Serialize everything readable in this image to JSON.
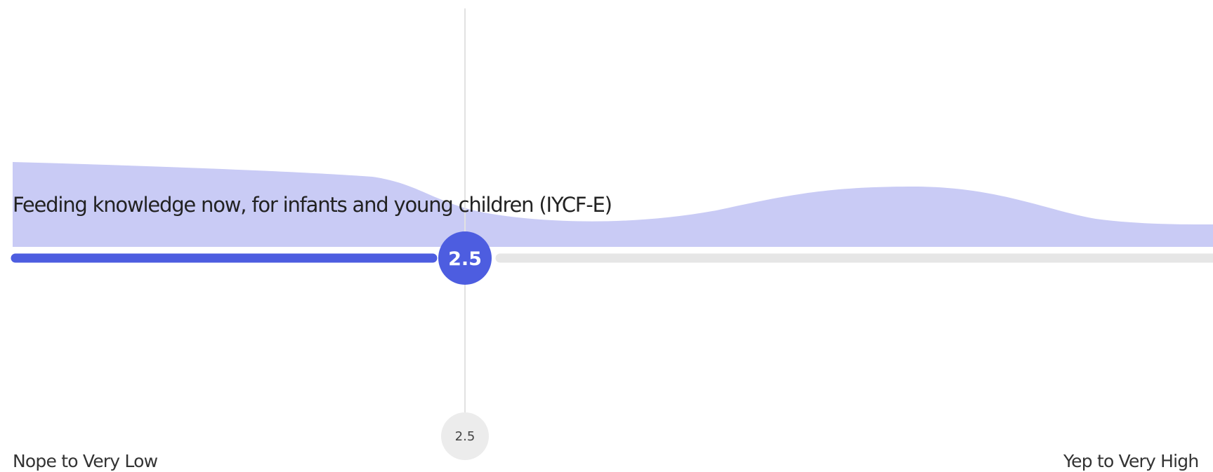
{
  "slider": {
    "label": "Feeding knowledge now, for infants and young children (IYCF-E)",
    "value": "2.5",
    "marker": "2.5",
    "min_label": "Nope to Very Low",
    "max_label": "Yep to Very High"
  }
}
